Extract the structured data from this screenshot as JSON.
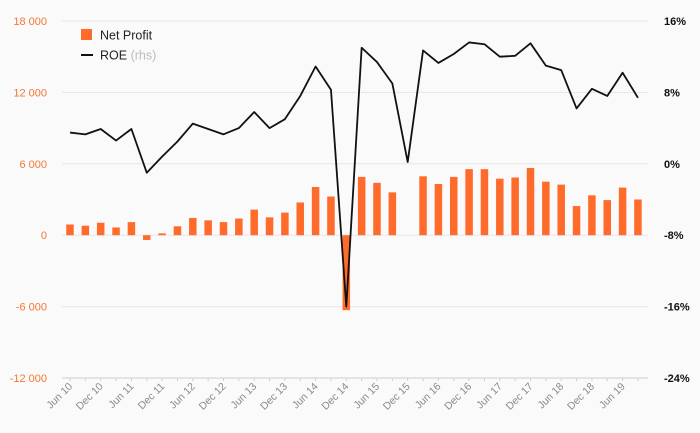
{
  "chart_data": {
    "type": "bar+line",
    "title": "",
    "xlabel": "",
    "ylabel": "",
    "y_left": {
      "range": [
        -12000,
        18000
      ],
      "ticks": [
        "-12 000",
        "-6 000",
        "0",
        "6 000",
        "12 000",
        "18 000"
      ],
      "tick_values": [
        -12000,
        -6000,
        0,
        6000,
        12000,
        18000
      ],
      "color": "#f47733"
    },
    "y_right": {
      "range": [
        -24,
        16
      ],
      "unit": "%",
      "ticks": [
        "-24%",
        "-16%",
        "-8%",
        "0%",
        "8%",
        "16%"
      ],
      "tick_values": [
        -24,
        -16,
        -8,
        0,
        8,
        16
      ]
    },
    "x_tick_labels": [
      "Jun 10",
      "Dec 10",
      "Jun 11",
      "Dec 11",
      "Jun 12",
      "Dec 12",
      "Jun 13",
      "Dec 13",
      "Jun 14",
      "Dec 14",
      "Jun 15",
      "Dec 15",
      "Jun 16",
      "Dec 16",
      "Jun 17",
      "Dec 17",
      "Jun 18",
      "Dec 18",
      "Jun 19"
    ],
    "x": [
      "Jun 10",
      "Sep 10",
      "Dec 10",
      "Mar 11",
      "Jun 11",
      "Sep 11",
      "Dec 11",
      "Mar 12",
      "Jun 12",
      "Sep 12",
      "Dec 12",
      "Mar 13",
      "Jun 13",
      "Sep 13",
      "Dec 13",
      "Mar 14",
      "Jun 14",
      "Sep 14",
      "Dec 14",
      "Mar 15",
      "Jun 15",
      "Sep 15",
      "Dec 15",
      "Mar 16",
      "Jun 16",
      "Sep 16",
      "Dec 16",
      "Mar 17",
      "Jun 17",
      "Sep 17",
      "Dec 17",
      "Mar 18",
      "Jun 18",
      "Sep 18",
      "Dec 18",
      "Mar 19",
      "Jun 19",
      "Sep 19"
    ],
    "series": [
      {
        "name": "Net Profit",
        "type": "bar",
        "axis": "left",
        "color": "#ff6b2b",
        "values": [
          900,
          800,
          1050,
          650,
          1100,
          -400,
          150,
          750,
          1450,
          1250,
          1100,
          1400,
          2150,
          1500,
          1900,
          2750,
          4050,
          3250,
          -6300,
          4900,
          4400,
          3600,
          null,
          4950,
          4300,
          4900,
          5550,
          5550,
          4750,
          4850,
          5650,
          4500,
          4250,
          2450,
          3350,
          2950,
          4000,
          3000
        ]
      },
      {
        "name": "ROE",
        "note": "(rhs)",
        "type": "line",
        "axis": "right",
        "color": "#111111",
        "values": [
          3.5,
          3.3,
          3.9,
          2.6,
          3.9,
          -1.0,
          0.8,
          2.5,
          4.5,
          3.9,
          3.3,
          4.0,
          5.8,
          4.0,
          5.0,
          7.6,
          10.9,
          8.3,
          -16.0,
          13.0,
          11.4,
          9.0,
          0.2,
          12.7,
          11.3,
          12.3,
          13.6,
          13.4,
          12.0,
          12.1,
          13.5,
          11.0,
          10.5,
          6.2,
          8.4,
          7.6,
          10.2,
          7.4
        ]
      }
    ],
    "legend": {
      "placement": "top-left",
      "entries": [
        "Net Profit",
        "ROE"
      ],
      "note": "(rhs)"
    },
    "grid": {
      "horizontal": true,
      "vertical": false
    }
  }
}
